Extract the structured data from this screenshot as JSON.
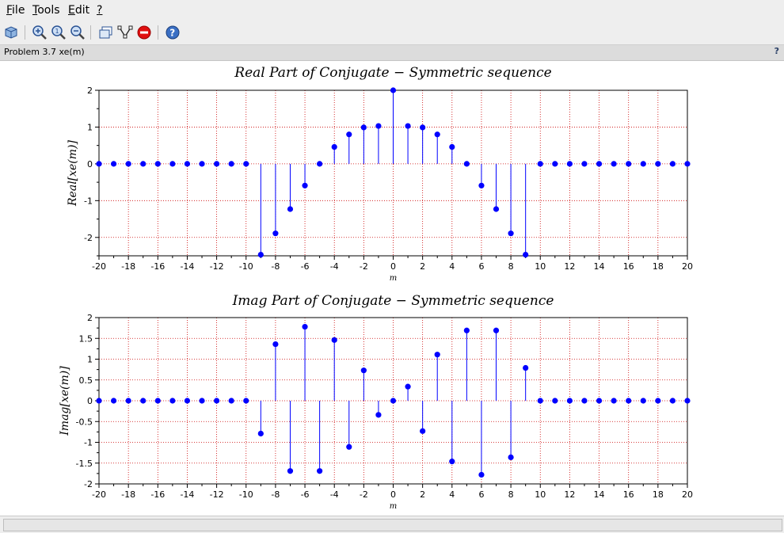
{
  "menu": [
    {
      "key": "F",
      "rest": "ile"
    },
    {
      "key": "T",
      "rest": "ools"
    },
    {
      "key": "E",
      "rest": "dit"
    },
    {
      "key": "?",
      "rest": ""
    }
  ],
  "toolbar_icons": [
    "rotate-icon",
    "zoom-in-icon",
    "zoom-fit-icon",
    "zoom-out-icon",
    "window-icon",
    "datatip-icon",
    "stop-icon",
    "help-icon"
  ],
  "infobar": {
    "title": "Problem 3.7 xe(m)",
    "help": "?"
  },
  "colors": {
    "stem": "#0000ff",
    "grid": "#cc0000"
  },
  "chart_data": [
    {
      "type": "stem",
      "title": "Real Part of Conjugate − Symmetric sequence",
      "xlabel": "m",
      "ylabel": "Real[xe(m)]",
      "xlim": [
        -20,
        20
      ],
      "ylim": [
        -2.5,
        2
      ],
      "xticks": [
        -20,
        -18,
        -16,
        -14,
        -12,
        -10,
        -8,
        -6,
        -4,
        -2,
        0,
        2,
        4,
        6,
        8,
        10,
        12,
        14,
        16,
        18,
        20
      ],
      "yticks": [
        -2,
        -1,
        0,
        1,
        2
      ],
      "x": [
        -20,
        -19,
        -18,
        -17,
        -16,
        -15,
        -14,
        -13,
        -12,
        -11,
        -10,
        -9,
        -8,
        -7,
        -6,
        -5,
        -4,
        -3,
        -2,
        -1,
        0,
        1,
        2,
        3,
        4,
        5,
        6,
        7,
        8,
        9,
        10,
        11,
        12,
        13,
        14,
        15,
        16,
        17,
        18,
        19,
        20
      ],
      "y": [
        0,
        0,
        0,
        0,
        0,
        0,
        0,
        0,
        0,
        0,
        0,
        -2.47,
        -1.89,
        -1.23,
        -0.59,
        0,
        0.46,
        0.8,
        0.99,
        1.03,
        2.0,
        1.03,
        0.99,
        0.8,
        0.46,
        0,
        -0.59,
        -1.23,
        -1.89,
        -2.47,
        0,
        0,
        0,
        0,
        0,
        0,
        0,
        0,
        0,
        0,
        0
      ]
    },
    {
      "type": "stem",
      "title": "Imag Part of Conjugate − Symmetric sequence",
      "xlabel": "m",
      "ylabel": "Imag[xe(m)]",
      "xlim": [
        -20,
        20
      ],
      "ylim": [
        -2,
        2
      ],
      "xticks": [
        -20,
        -18,
        -16,
        -14,
        -12,
        -10,
        -8,
        -6,
        -4,
        -2,
        0,
        2,
        4,
        6,
        8,
        10,
        12,
        14,
        16,
        18,
        20
      ],
      "yticks": [
        -2,
        -1.5,
        -1,
        -0.5,
        0,
        0.5,
        1,
        1.5,
        2
      ],
      "x": [
        -20,
        -19,
        -18,
        -17,
        -16,
        -15,
        -14,
        -13,
        -12,
        -11,
        -10,
        -9,
        -8,
        -7,
        -6,
        -5,
        -4,
        -3,
        -2,
        -1,
        0,
        1,
        2,
        3,
        4,
        5,
        6,
        7,
        8,
        9,
        10,
        11,
        12,
        13,
        14,
        15,
        16,
        17,
        18,
        19,
        20
      ],
      "y": [
        0,
        0,
        0,
        0,
        0,
        0,
        0,
        0,
        0,
        0,
        0,
        -0.79,
        1.36,
        -1.69,
        1.78,
        -1.69,
        1.46,
        -1.11,
        0.73,
        -0.34,
        0,
        0.34,
        -0.73,
        1.11,
        -1.46,
        1.69,
        -1.78,
        1.69,
        -1.36,
        0.79,
        0,
        0,
        0,
        0,
        0,
        0,
        0,
        0,
        0,
        0,
        0
      ]
    }
  ]
}
